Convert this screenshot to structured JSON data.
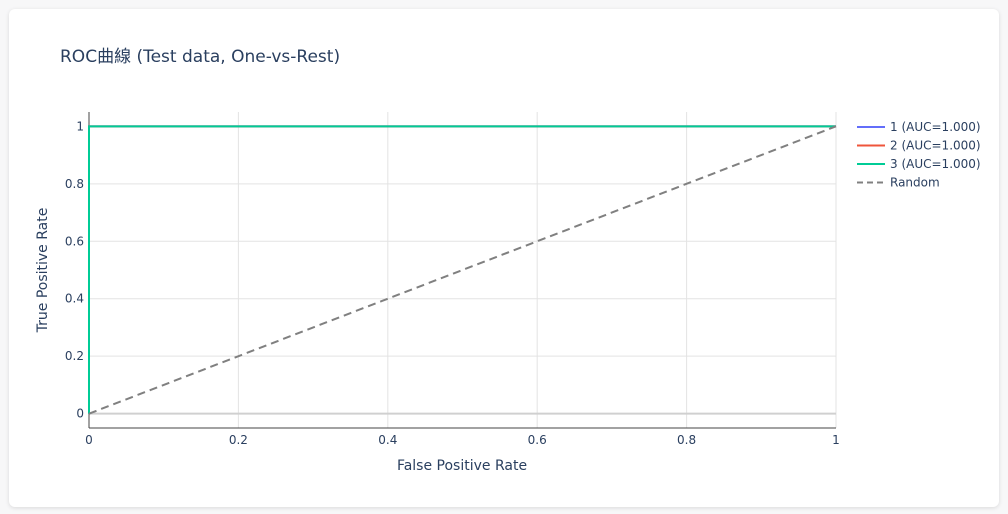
{
  "chart_data": {
    "type": "line",
    "title": "ROC曲線 (Test data, One-vs-Rest)",
    "xlabel": "False Positive Rate",
    "ylabel": "True Positive Rate",
    "xlim": [
      0,
      1
    ],
    "ylim": [
      -0.05,
      1.05
    ],
    "xticks": [
      0,
      0.2,
      0.4,
      0.6,
      0.8,
      1
    ],
    "xtick_labels": [
      "0",
      "0.2",
      "0.4",
      "0.6",
      "0.8",
      "1"
    ],
    "yticks": [
      0,
      0.2,
      0.4,
      0.6,
      0.8,
      1
    ],
    "ytick_labels": [
      "0",
      "0.2",
      "0.4",
      "0.6",
      "0.8",
      "1"
    ],
    "grid": true,
    "legend_position": "right",
    "series": [
      {
        "name": "1 (AUC=1.000)",
        "color": "#636efa",
        "dash": "solid",
        "x": [
          0,
          0,
          1
        ],
        "y": [
          0,
          1,
          1
        ]
      },
      {
        "name": "2 (AUC=1.000)",
        "color": "#ef553b",
        "dash": "solid",
        "x": [
          0,
          0,
          1
        ],
        "y": [
          0,
          1,
          1
        ]
      },
      {
        "name": "3 (AUC=1.000)",
        "color": "#00cc96",
        "dash": "solid",
        "x": [
          0,
          0,
          1
        ],
        "y": [
          0,
          1,
          1
        ]
      },
      {
        "name": "Random",
        "color": "#808080",
        "dash": "dash",
        "x": [
          0,
          1
        ],
        "y": [
          0,
          1
        ]
      }
    ]
  }
}
